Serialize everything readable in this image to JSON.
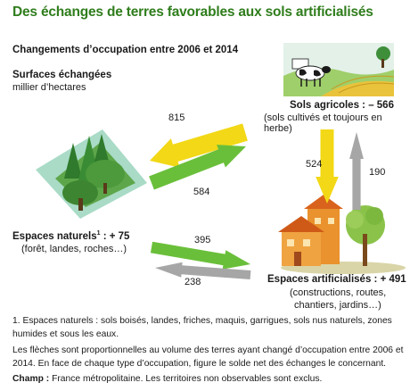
{
  "title": "Des échanges de terres favorables aux sols artificialisés",
  "subtitle": "Changements d’occupation entre 2006 et 2014",
  "unit_heading": "Surfaces échangées",
  "unit": "millier d’hectares",
  "nodes": {
    "agricole": {
      "title": "Sols agricoles : – 566",
      "desc": "(sols cultivés et toujours en herbe)"
    },
    "naturel": {
      "title": "Espaces naturels",
      "sup": "1",
      "title_suffix": " : + 75",
      "desc": "(forêt, landes, roches…)"
    },
    "artificiel": {
      "title": "Espaces artificialisés : + 491",
      "desc1": "(constructions, routes,",
      "desc2": "chantiers, jardins…)"
    }
  },
  "flows": [
    {
      "from": "agricole",
      "to": "naturel",
      "value": 815,
      "color": "#f2d816"
    },
    {
      "from": "naturel",
      "to": "agricole",
      "value": 584,
      "color": "#6abf3a"
    },
    {
      "from": "agricole",
      "to": "artificiel",
      "value": 524,
      "color": "#f2d816"
    },
    {
      "from": "artificiel",
      "to": "agricole",
      "value": 190,
      "color": "#a6a6a6"
    },
    {
      "from": "naturel",
      "to": "artificiel",
      "value": 395,
      "color": "#6abf3a"
    },
    {
      "from": "artificiel",
      "to": "naturel",
      "value": 238,
      "color": "#a6a6a6"
    }
  ],
  "colors": {
    "title": "#2f7d1c",
    "yellow": "#f2d816",
    "green": "#6abf3a",
    "grey": "#a6a6a6"
  },
  "notes": {
    "note1": "1. Espaces naturels : sols boisés, landes, friches, maquis, garrigues, sols nus naturels, zones humides et sous les eaux.",
    "note2": "Les flèches sont proportionnelles au volume des terres ayant changé d’occupation entre 2006 et 2014. En face de chaque type d’occupation, figure le solde net des échanges le concernant.",
    "champ_label": "Champ :",
    "champ_text": " France métropolitaine. Les territoires non observables sont exclus."
  }
}
